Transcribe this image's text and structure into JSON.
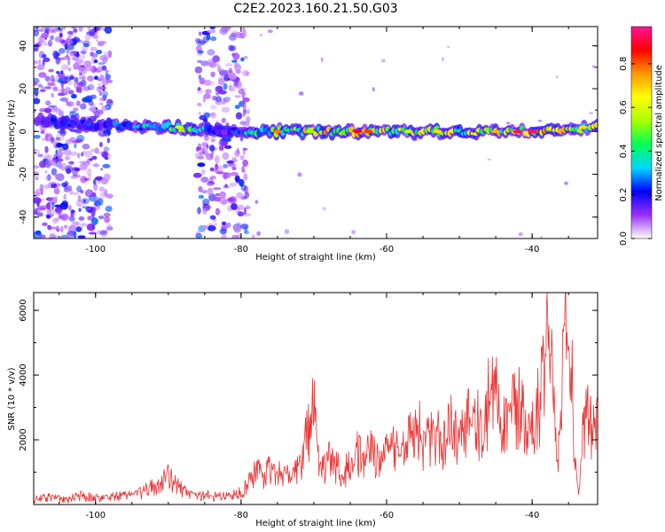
{
  "figure_title": "C2E2.2023.160.21.50.G03",
  "colorbar": {
    "label": "Normalized spectral amplitude",
    "ticks": [
      "0.0",
      "0.2",
      "0.4",
      "0.6",
      "0.8"
    ],
    "range": [
      0,
      0.97
    ],
    "colormap": [
      "#ffffff",
      "#9b30ff",
      "#0000ff",
      "#00d7ff",
      "#00ff55",
      "#aaff00",
      "#ffff00",
      "#ff9900",
      "#ff0000",
      "#ff1493"
    ]
  },
  "chart_data": [
    {
      "type": "heatmap",
      "title": "",
      "xlabel": "Height of straight line (km)",
      "ylabel": "Frequency (Hz)",
      "xlim": [
        -108.5,
        -31
      ],
      "ylim": [
        -50,
        49
      ],
      "x_ticks": [
        "-100",
        "-80",
        "-60",
        "-40"
      ],
      "y_ticks": [
        "-40",
        "-20",
        "0",
        "20",
        "40"
      ],
      "description_series": [
        {
          "name": "band_center_hz",
          "x": [
            -108,
            -100,
            -90,
            -80,
            -70,
            -60,
            -50,
            -40,
            -31
          ],
          "y": [
            5,
            3,
            2,
            0,
            0,
            0,
            0,
            0,
            2
          ]
        },
        {
          "name": "band_peak_amplitude",
          "x": [
            -104,
            -95,
            -88,
            -82,
            -75,
            -65,
            -55,
            -45,
            -40,
            -33
          ],
          "y": [
            0.25,
            0.35,
            0.6,
            0.2,
            0.75,
            0.85,
            0.7,
            0.75,
            0.97,
            0.7
          ]
        },
        {
          "name": "noise_band",
          "x_ranges": [
            [
              -108.5,
              -98
            ],
            [
              -86,
              -79
            ]
          ]
        }
      ]
    },
    {
      "type": "line",
      "title": "",
      "xlabel": "Height of straight line (km)",
      "ylabel": "SNR (10 * v/v)",
      "xlim": [
        -108.5,
        -31
      ],
      "ylim": [
        0,
        6550
      ],
      "x_ticks": [
        "-100",
        "-80",
        "-60",
        "-40"
      ],
      "y_ticks": [
        "2000",
        "4000",
        "6000"
      ],
      "color": "#ee3333",
      "series": [
        {
          "name": "SNR",
          "x": [
            -108.5,
            -106,
            -104,
            -102,
            -100,
            -98,
            -96,
            -94,
            -92,
            -91,
            -90,
            -89,
            -88,
            -87,
            -86,
            -84,
            -82,
            -80,
            -79,
            -78,
            -77,
            -76,
            -75,
            -74,
            -73,
            -72,
            -71,
            -70.5,
            -70,
            -69,
            -68,
            -67,
            -66,
            -65,
            -64,
            -63,
            -62,
            -61,
            -60,
            -59,
            -58,
            -57,
            -56,
            -55,
            -54,
            -53,
            -52,
            -51,
            -50,
            -49,
            -48,
            -47,
            -46,
            -45,
            -44,
            -43,
            -42,
            -41,
            -40,
            -39,
            -38.5,
            -38,
            -37.5,
            -37,
            -36.5,
            -36,
            -35.5,
            -35,
            -34.5,
            -34,
            -33.5,
            -33,
            -32.5,
            -32,
            -31.5,
            -31
          ],
          "y": [
            200,
            250,
            200,
            300,
            250,
            300,
            300,
            400,
            600,
            800,
            1000,
            700,
            500,
            400,
            350,
            300,
            300,
            400,
            800,
            1200,
            1000,
            1300,
            1100,
            1000,
            900,
            1300,
            2200,
            2800,
            3100,
            1200,
            1500,
            1300,
            1000,
            1400,
            1800,
            1500,
            1900,
            1300,
            1700,
            2100,
            1700,
            2200,
            3100,
            1900,
            2300,
            2500,
            2000,
            2800,
            2300,
            2600,
            3200,
            2500,
            3500,
            3600,
            2600,
            3100,
            3400,
            2900,
            2800,
            3500,
            4200,
            6500,
            5000,
            3000,
            1200,
            3800,
            6300,
            4800,
            4000,
            1000,
            400,
            2500,
            3000,
            2800,
            2600,
            3000
          ]
        }
      ]
    }
  ]
}
